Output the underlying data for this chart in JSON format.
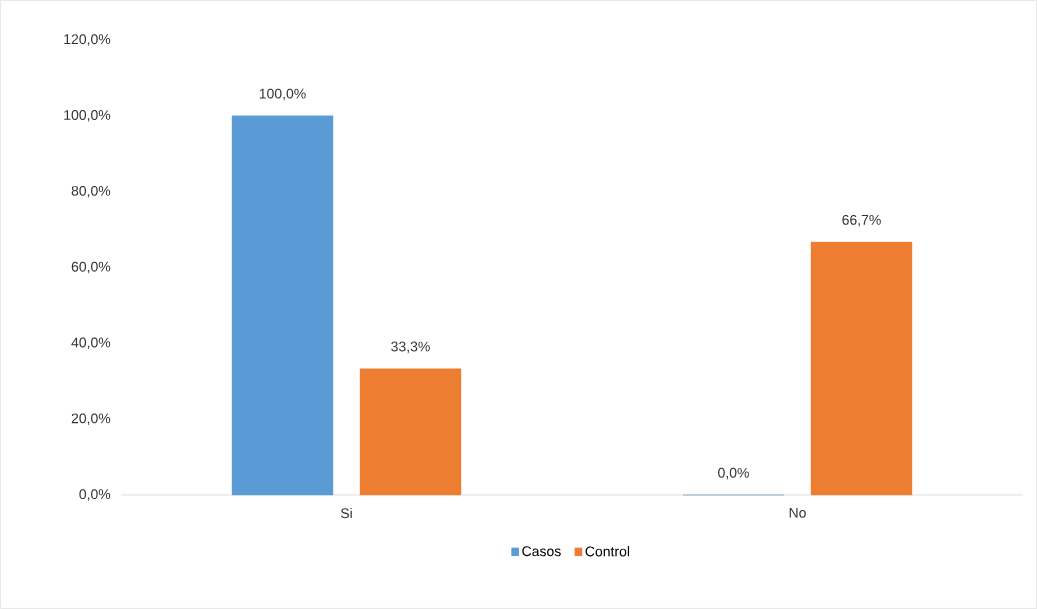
{
  "chart_data": {
    "type": "bar",
    "categories": [
      "Si",
      "No"
    ],
    "series": [
      {
        "name": "Casos",
        "color": "#5b9bd5",
        "values": [
          100,
          0
        ],
        "value_labels": [
          "100,0%",
          "0,0%"
        ]
      },
      {
        "name": "Control",
        "color": "#ed7d31",
        "values": [
          33.3,
          66.7
        ],
        "value_labels": [
          "33,3%",
          "66,7%"
        ]
      }
    ],
    "ylim": [
      0,
      120
    ],
    "yticks": [
      {
        "value": 0,
        "label": "0,0%"
      },
      {
        "value": 20,
        "label": "20,0%"
      },
      {
        "value": 40,
        "label": "40,0%"
      },
      {
        "value": 60,
        "label": "60,0%"
      },
      {
        "value": 80,
        "label": "80,0%"
      },
      {
        "value": 100,
        "label": "100,0%"
      },
      {
        "value": 120,
        "label": "120,0%"
      }
    ],
    "grid": false,
    "legend": "bottom"
  }
}
